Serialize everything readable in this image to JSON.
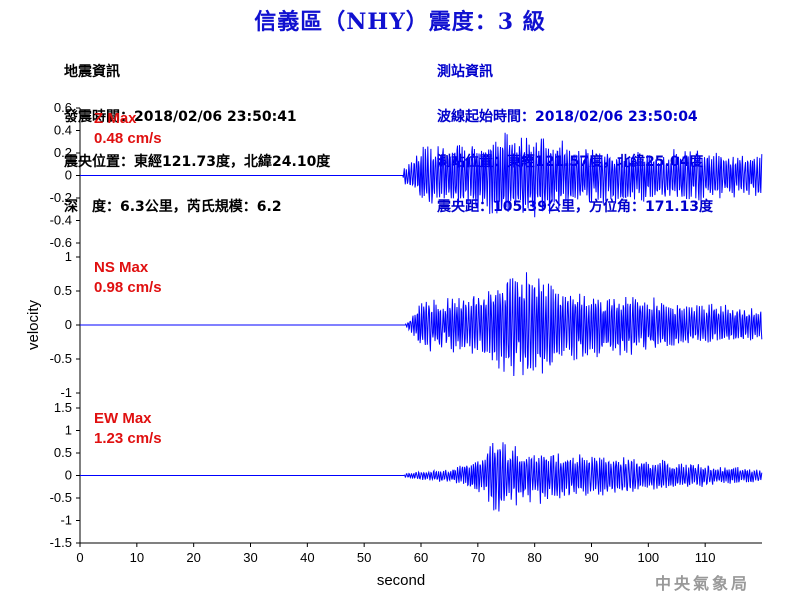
{
  "header": {
    "title": "信義區（NHY）震度：3 級"
  },
  "quake_info": {
    "heading": "地震資訊",
    "origin_time": "發震時間：2018/02/06 23:50:41",
    "epicenter": "震央位置：東經121.73度，北緯24.10度",
    "depth_magnitude": "深　度：6.3公里，芮氏規模：6.2"
  },
  "station_info": {
    "heading": "測站資訊",
    "onset_time": "波線起始時間：2018/02/06 23:50:04",
    "location": "測站位置：東經121.57度，北緯25.04度",
    "distance": "震央距：105.39公里，方位角：171.13度"
  },
  "watermark": "中央氣象局",
  "colors": {
    "title": "#1010d0",
    "trace": "#0000ff",
    "max_label": "#e01010",
    "station_text": "#0000cc"
  },
  "chart_data": {
    "type": "line",
    "xlabel": "second",
    "ylabel": "velocity",
    "xlim": [
      0,
      120
    ],
    "xticks": [
      0,
      10,
      20,
      30,
      40,
      50,
      60,
      70,
      80,
      90,
      100,
      110
    ],
    "panels": [
      {
        "name": "Z",
        "max_line1": "Z Max",
        "max_line2": "0.48 cm/s",
        "max": 0.48,
        "ylim": [
          -0.6,
          0.6
        ],
        "yticks": [
          -0.6,
          -0.4,
          -0.2,
          0,
          0.2,
          0.4,
          0.6
        ],
        "ytick_labels": [
          "-0.6",
          "-0.4",
          "-0.2",
          "0",
          "0.2",
          "0.4",
          "0.6"
        ],
        "onset": 56.8,
        "envelope": [
          [
            0,
            0
          ],
          [
            56.8,
            0
          ],
          [
            57,
            0.08
          ],
          [
            58,
            0.12
          ],
          [
            60,
            0.25
          ],
          [
            63,
            0.25
          ],
          [
            66,
            0.3
          ],
          [
            70,
            0.3
          ],
          [
            73,
            0.45
          ],
          [
            76,
            0.35
          ],
          [
            79,
            0.42
          ],
          [
            82,
            0.35
          ],
          [
            85,
            0.28
          ],
          [
            90,
            0.25
          ],
          [
            95,
            0.25
          ],
          [
            100,
            0.23
          ],
          [
            105,
            0.25
          ],
          [
            110,
            0.22
          ],
          [
            115,
            0.2
          ],
          [
            120,
            0.18
          ]
        ]
      },
      {
        "name": "NS",
        "max_line1": "NS Max",
        "max_line2": "0.98 cm/s",
        "max": 0.98,
        "ylim": [
          -1,
          1
        ],
        "yticks": [
          -1,
          -0.5,
          0,
          0.5,
          1
        ],
        "ytick_labels": [
          "-1",
          "-0.5",
          "0",
          "0.5",
          "1"
        ],
        "onset": 57.2,
        "envelope": [
          [
            0,
            0
          ],
          [
            57.2,
            0
          ],
          [
            57.5,
            0.05
          ],
          [
            58,
            0.1
          ],
          [
            60,
            0.4
          ],
          [
            63,
            0.35
          ],
          [
            66,
            0.4
          ],
          [
            70,
            0.45
          ],
          [
            73,
            0.65
          ],
          [
            76,
            0.75
          ],
          [
            79,
            0.8
          ],
          [
            82,
            0.7
          ],
          [
            85,
            0.55
          ],
          [
            90,
            0.5
          ],
          [
            95,
            0.45
          ],
          [
            100,
            0.42
          ],
          [
            105,
            0.35
          ],
          [
            110,
            0.32
          ],
          [
            115,
            0.28
          ],
          [
            120,
            0.24
          ]
        ]
      },
      {
        "name": "EW",
        "max_line1": "EW Max",
        "max_line2": "1.23 cm/s",
        "max": 1.23,
        "ylim": [
          -1.5,
          1.5
        ],
        "yticks": [
          -1.5,
          -1,
          -0.5,
          0,
          0.5,
          1,
          1.5
        ],
        "ytick_labels": [
          "-1.5",
          "-1",
          "-0.5",
          "0",
          "0.5",
          "1",
          "1.5"
        ],
        "onset": 57.0,
        "envelope": [
          [
            0,
            0
          ],
          [
            57,
            0
          ],
          [
            57.3,
            0.05
          ],
          [
            60,
            0.1
          ],
          [
            65,
            0.15
          ],
          [
            68,
            0.3
          ],
          [
            71,
            0.55
          ],
          [
            73,
            0.9
          ],
          [
            75,
            0.7
          ],
          [
            78,
            0.55
          ],
          [
            82,
            0.6
          ],
          [
            86,
            0.5
          ],
          [
            90,
            0.45
          ],
          [
            95,
            0.45
          ],
          [
            100,
            0.35
          ],
          [
            105,
            0.3
          ],
          [
            110,
            0.25
          ],
          [
            115,
            0.2
          ],
          [
            120,
            0.15
          ]
        ]
      }
    ]
  }
}
